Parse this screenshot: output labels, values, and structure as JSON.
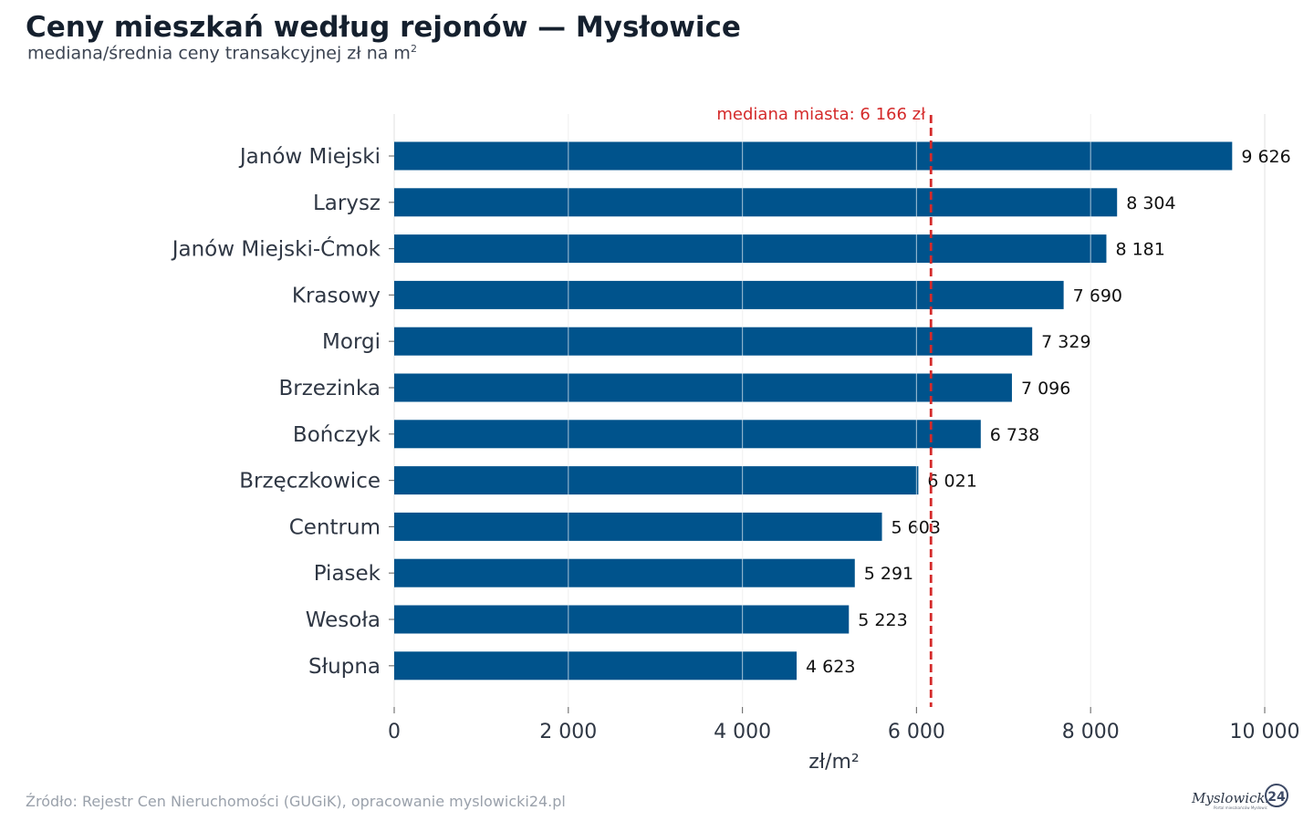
{
  "title": "Ceny mieszkań według rejonów — Mysłowice",
  "subtitle": "mediana/średnia ceny transakcyjnej zł na m",
  "subtitle_sup": "2",
  "source": "Źródło: Rejestr Cen Nieruchomości (GUGiK), opracowanie myslowicki24.pl",
  "logo": {
    "text": "Myslowicki",
    "badge": "24",
    "tagline": "Portal mieszkańców Mysłowic"
  },
  "colors": {
    "bar": "#00538c",
    "median": "#d42a2a",
    "grid": "#e6e6e6"
  },
  "chart_data": {
    "type": "bar",
    "orientation": "horizontal",
    "categories": [
      "Janów Miejski",
      "Larysz",
      "Janów Miejski-Ćmok",
      "Krasowy",
      "Morgi",
      "Brzezinka",
      "Bończyk",
      "Brzęczkowice",
      "Centrum",
      "Piasek",
      "Wesoła",
      "Słupna"
    ],
    "values": [
      9626,
      8304,
      8181,
      7690,
      7329,
      7096,
      6738,
      6021,
      5603,
      5291,
      5223,
      4623
    ],
    "value_labels": [
      "9 626",
      "8 304",
      "8 181",
      "7 690",
      "7 329",
      "7 096",
      "6 738",
      "6 021",
      "5 603",
      "5 291",
      "5 223",
      "4 623"
    ],
    "xlabel": "zł/m²",
    "ylabel": "",
    "xlim": [
      0,
      10000
    ],
    "xticks": [
      0,
      2000,
      4000,
      6000,
      8000,
      10000
    ],
    "xtick_labels": [
      "0",
      "2 000",
      "4 000",
      "6 000",
      "8 000",
      "10 000"
    ],
    "grid": true,
    "reference_line": {
      "value": 6166,
      "label": "mediana miasta: 6 166 zł",
      "style": "dashed"
    }
  }
}
